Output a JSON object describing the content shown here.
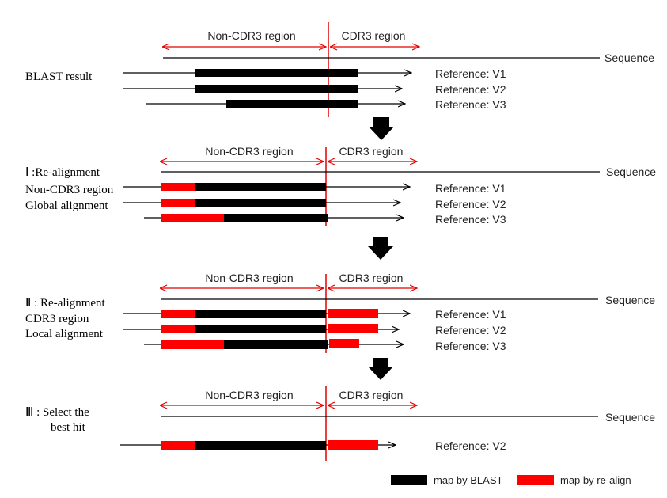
{
  "colors": {
    "blast": "#000000",
    "realign": "#ff0000",
    "arrow": "#e00000",
    "line": "#000000"
  },
  "sequence_label": "Sequence",
  "region_labels": {
    "non_cdr3": "Non-CDR3 region",
    "cdr3": "CDR3 region"
  },
  "panels": [
    {
      "id": "blast",
      "step_lines": [
        "BLAST result"
      ],
      "refs": [
        {
          "label": "Reference: V1",
          "segments": [
            {
              "kind": "blast"
            },
            {
              "kind": "blast"
            }
          ]
        },
        {
          "label": "Reference: V2",
          "segments": [
            {
              "kind": "blast"
            },
            {
              "kind": "blast"
            }
          ]
        },
        {
          "label": "Reference: V3",
          "segments": [
            {
              "kind": "blast"
            },
            {
              "kind": "blast"
            }
          ]
        }
      ]
    },
    {
      "id": "step1",
      "step_lines": [
        "Ⅰ :Re-alignment",
        "Non-CDR3 region",
        "Global alignment"
      ],
      "refs": [
        {
          "label": "Reference: V1",
          "segments": [
            {
              "kind": "realign"
            },
            {
              "kind": "blast"
            }
          ]
        },
        {
          "label": "Reference: V2",
          "segments": [
            {
              "kind": "realign"
            },
            {
              "kind": "blast"
            }
          ]
        },
        {
          "label": "Reference: V3",
          "segments": [
            {
              "kind": "realign"
            },
            {
              "kind": "blast"
            }
          ]
        }
      ]
    },
    {
      "id": "step2",
      "step_lines": [
        "Ⅱ : Re-alignment",
        "CDR3 region",
        "Local alignment"
      ],
      "refs": [
        {
          "label": "Reference: V1",
          "segments": [
            {
              "kind": "realign"
            },
            {
              "kind": "blast"
            },
            {
              "kind": "realign"
            }
          ]
        },
        {
          "label": "Reference: V2",
          "segments": [
            {
              "kind": "realign"
            },
            {
              "kind": "blast"
            },
            {
              "kind": "realign"
            }
          ]
        },
        {
          "label": "Reference: V3",
          "segments": [
            {
              "kind": "realign"
            },
            {
              "kind": "blast"
            },
            {
              "kind": "realign"
            }
          ]
        }
      ]
    },
    {
      "id": "step3",
      "step_lines": [
        "Ⅲ :  Select the",
        "best hit"
      ],
      "refs": [
        {
          "label": "Reference: V2",
          "segments": [
            {
              "kind": "realign"
            },
            {
              "kind": "blast"
            },
            {
              "kind": "realign"
            }
          ]
        }
      ]
    }
  ],
  "legend": [
    {
      "kind": "blast",
      "label": "map by BLAST"
    },
    {
      "kind": "realign",
      "label": "map by re-align"
    }
  ]
}
